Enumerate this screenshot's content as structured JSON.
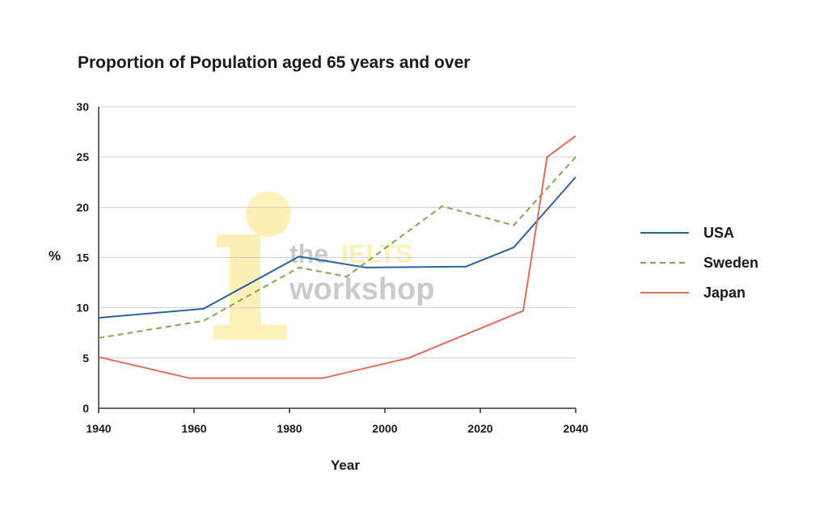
{
  "chart_data": {
    "type": "line",
    "title": "Proportion of Population aged 65 years and over",
    "xlabel": "Year",
    "ylabel": "%",
    "xlim": [
      1940,
      2040
    ],
    "ylim": [
      0,
      30
    ],
    "x_ticks": [
      1940,
      1960,
      1980,
      2000,
      2020,
      2040
    ],
    "y_ticks": [
      0,
      5,
      10,
      15,
      20,
      25,
      30
    ],
    "grid": "horizontal",
    "legend_position": "right",
    "series": [
      {
        "name": "USA",
        "color": "#2a62a3",
        "style": "solid",
        "points": [
          [
            1940,
            9
          ],
          [
            1962,
            9.9
          ],
          [
            1982,
            15.1
          ],
          [
            1996,
            14
          ],
          [
            2017,
            14.1
          ],
          [
            2027,
            16
          ],
          [
            2040,
            23
          ]
        ]
      },
      {
        "name": "Sweden",
        "color": "#7fa84a",
        "style": "dashed",
        "points": [
          [
            1940,
            7
          ],
          [
            1962,
            8.7
          ],
          [
            1982,
            14
          ],
          [
            1992,
            13.1
          ],
          [
            2012,
            20.1
          ],
          [
            2027,
            18.2
          ],
          [
            2040,
            25
          ]
        ]
      },
      {
        "name": "Japan",
        "color": "#e26c57",
        "style": "solid",
        "points": [
          [
            1940,
            5.1
          ],
          [
            1959,
            3
          ],
          [
            1987,
            3
          ],
          [
            2005,
            5
          ],
          [
            2029,
            9.7
          ],
          [
            2034,
            25
          ],
          [
            2040,
            27.1
          ]
        ]
      }
    ]
  },
  "watermark": {
    "line1_a": "the",
    "line1_b": "IELTS",
    "line2": "workshop",
    "letter": "i",
    "color_grey": "#c8c8c8",
    "color_yellow": "#fdf0b4"
  }
}
